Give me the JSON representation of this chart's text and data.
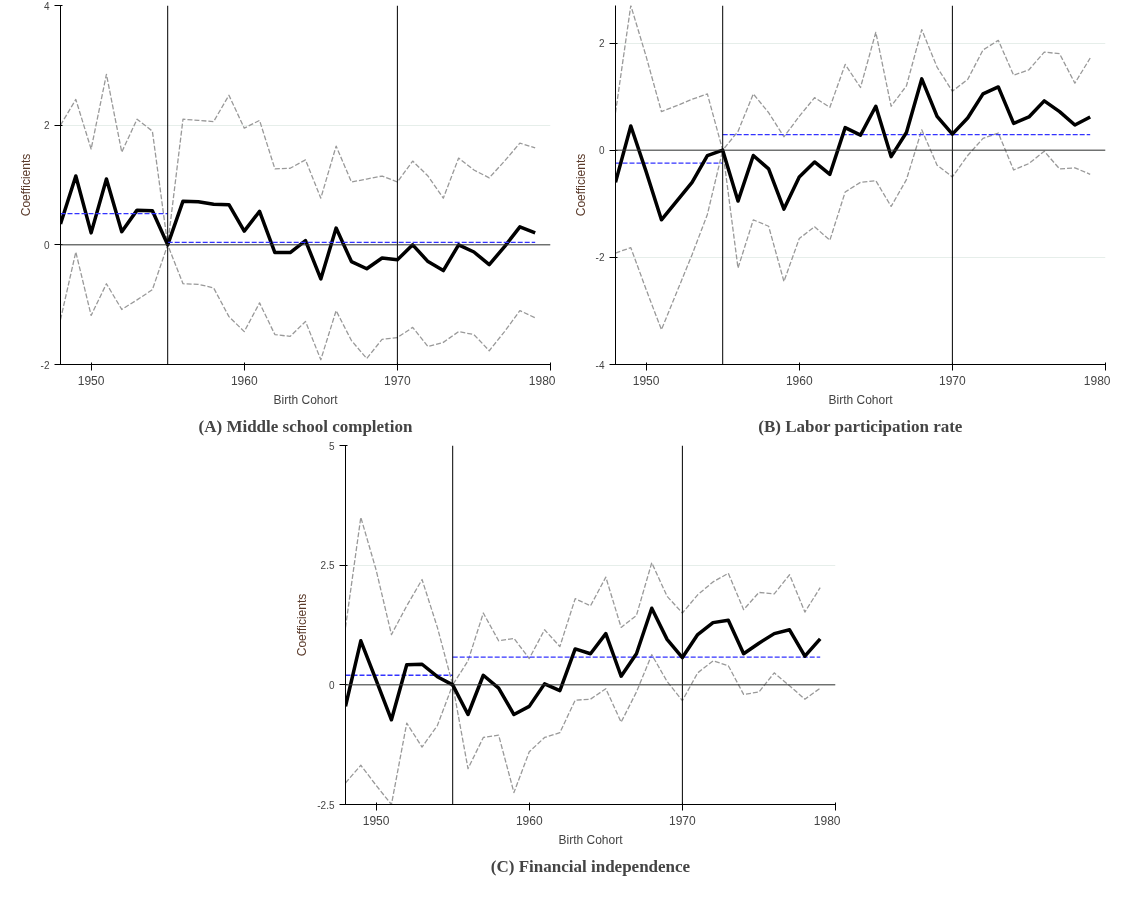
{
  "chart_data": [
    {
      "type": "line",
      "title": "(A) Middle school completion",
      "xlabel": "Birth Cohort",
      "ylabel": "Coefficients",
      "xlim": [
        1948,
        1980
      ],
      "ylim": [
        -2,
        4
      ],
      "xticks": [
        1950,
        1960,
        1970,
        1980
      ],
      "yticks": [
        -2,
        0,
        2,
        4
      ],
      "grid": "y",
      "x": [
        1948,
        1949,
        1950,
        1951,
        1952,
        1953,
        1954,
        1955,
        1956,
        1957,
        1958,
        1959,
        1960,
        1961,
        1962,
        1963,
        1964,
        1965,
        1966,
        1967,
        1968,
        1969,
        1970,
        1971,
        1972,
        1973,
        1974,
        1975,
        1976,
        1977,
        1978,
        1979
      ],
      "ref_lines": [
        {
          "axis": "x",
          "value": 1955,
          "color": "#000000"
        },
        {
          "axis": "x",
          "value": 1970,
          "color": "#000000"
        },
        {
          "axis": "y",
          "value": 0,
          "color": "#333333"
        }
      ],
      "series": [
        {
          "color": "#999999",
          "line_style": "dashed",
          "values": [
            2.0,
            2.43,
            1.6,
            2.85,
            1.55,
            2.1,
            1.9,
            0,
            2.1,
            2.08,
            2.06,
            2.5,
            1.95,
            2.08,
            1.27,
            1.28,
            1.42,
            0.78,
            1.65,
            1.05,
            1.1,
            1.15,
            1.05,
            1.4,
            1.15,
            0.78,
            1.45,
            1.25,
            1.12,
            1.4,
            1.7,
            1.62
          ]
        },
        {
          "color": "#999999",
          "line_style": "dashed",
          "values": [
            -1.25,
            -0.12,
            -1.18,
            -0.65,
            -1.08,
            -0.92,
            -0.75,
            0,
            -0.65,
            -0.66,
            -0.72,
            -1.2,
            -1.45,
            -0.97,
            -1.5,
            -1.53,
            -1.28,
            -1.92,
            -1.1,
            -1.6,
            -1.9,
            -1.58,
            -1.55,
            -1.38,
            -1.7,
            -1.63,
            -1.45,
            -1.5,
            -1.77,
            -1.45,
            -1.1,
            -1.22
          ]
        },
        {
          "color": "#000000",
          "line_style": "solid",
          "values": [
            0.35,
            1.15,
            0.2,
            1.1,
            0.22,
            0.58,
            0.57,
            0,
            0.73,
            0.72,
            0.68,
            0.67,
            0.23,
            0.56,
            -0.13,
            -0.13,
            0.07,
            -0.57,
            0.28,
            -0.28,
            -0.4,
            -0.22,
            -0.25,
            0.0,
            -0.28,
            -0.43,
            0.0,
            -0.12,
            -0.33,
            -0.03,
            0.3,
            0.2
          ]
        },
        {
          "color": "#3333ff",
          "line_style": "dashed",
          "x": [
            1948,
            1955
          ],
          "values": [
            0.52,
            0.52
          ]
        },
        {
          "color": "#3333ff",
          "line_style": "dashed",
          "x": [
            1955,
            1979
          ],
          "values": [
            0.04,
            0.04
          ]
        }
      ]
    },
    {
      "type": "line",
      "title": "(B) Labor participation rate",
      "xlabel": "Birth Cohort",
      "ylabel": "Coefficients",
      "xlim": [
        1948,
        1980
      ],
      "ylim": [
        -4,
        2.7
      ],
      "xticks": [
        1950,
        1960,
        1970,
        1980
      ],
      "yticks": [
        -4,
        -2,
        0,
        2
      ],
      "grid": "y",
      "x": [
        1948,
        1949,
        1950,
        1951,
        1952,
        1953,
        1954,
        1955,
        1956,
        1957,
        1958,
        1959,
        1960,
        1961,
        1962,
        1963,
        1964,
        1965,
        1966,
        1967,
        1968,
        1969,
        1970,
        1971,
        1972,
        1973,
        1974,
        1975,
        1976,
        1977,
        1978,
        1979
      ],
      "ref_lines": [
        {
          "axis": "x",
          "value": 1955,
          "color": "#000000"
        },
        {
          "axis": "x",
          "value": 1970,
          "color": "#000000"
        },
        {
          "axis": "y",
          "value": 0,
          "color": "#333333"
        }
      ],
      "series": [
        {
          "color": "#999999",
          "line_style": "dashed",
          "values": [
            0.7,
            2.7,
            1.75,
            0.72,
            0.83,
            0.95,
            1.05,
            0,
            0.35,
            1.05,
            0.7,
            0.25,
            0.63,
            0.98,
            0.8,
            1.6,
            1.17,
            2.2,
            0.82,
            1.2,
            2.25,
            1.55,
            1.1,
            1.32,
            1.87,
            2.05,
            1.4,
            1.5,
            1.83,
            1.8,
            1.25,
            1.72
          ]
        },
        {
          "color": "#999999",
          "line_style": "dashed",
          "values": [
            -1.92,
            -1.82,
            -2.6,
            -3.35,
            -2.65,
            -1.95,
            -1.2,
            0,
            -2.2,
            -1.3,
            -1.42,
            -2.45,
            -1.65,
            -1.43,
            -1.68,
            -0.78,
            -0.6,
            -0.57,
            -1.05,
            -0.55,
            0.38,
            -0.28,
            -0.5,
            -0.1,
            0.22,
            0.32,
            -0.37,
            -0.25,
            -0.02,
            -0.35,
            -0.33,
            -0.45
          ]
        },
        {
          "color": "#3333ff",
          "line_style": "dashed",
          "x": [
            1948,
            1955
          ],
          "values": [
            -0.24,
            -0.24
          ]
        },
        {
          "color": "#3333ff",
          "line_style": "dashed",
          "x": [
            1955,
            1979
          ],
          "values": [
            0.29,
            0.29
          ]
        },
        {
          "color": "#000000",
          "line_style": "solid",
          "values": [
            -0.6,
            0.45,
            -0.4,
            -1.3,
            -0.95,
            -0.6,
            -0.1,
            0,
            -0.95,
            -0.1,
            -0.35,
            -1.1,
            -0.5,
            -0.22,
            -0.45,
            0.42,
            0.28,
            0.82,
            -0.12,
            0.33,
            1.33,
            0.63,
            0.3,
            0.6,
            1.05,
            1.18,
            0.5,
            0.62,
            0.92,
            0.72,
            0.47,
            0.62
          ]
        }
      ]
    },
    {
      "type": "line",
      "title": "(C) Financial independence",
      "xlabel": "Birth Cohort",
      "ylabel": "Coefficients",
      "xlim": [
        1948,
        1980
      ],
      "ylim": [
        -2.5,
        5
      ],
      "xticks": [
        1950,
        1960,
        1970,
        1980
      ],
      "yticks": [
        -2.5,
        0,
        2.5,
        5
      ],
      "grid": "y",
      "x": [
        1948,
        1949,
        1950,
        1951,
        1952,
        1953,
        1954,
        1955,
        1956,
        1957,
        1958,
        1959,
        1960,
        1961,
        1962,
        1963,
        1964,
        1965,
        1966,
        1967,
        1968,
        1969,
        1970,
        1971,
        1972,
        1973,
        1974,
        1975,
        1976,
        1977,
        1978,
        1979
      ],
      "ref_lines": [
        {
          "axis": "x",
          "value": 1955,
          "color": "#000000"
        },
        {
          "axis": "x",
          "value": 1970,
          "color": "#000000"
        },
        {
          "axis": "y",
          "value": 0,
          "color": "#333333"
        }
      ],
      "series": [
        {
          "color": "#999999",
          "line_style": "dashed",
          "values": [
            1.2,
            3.5,
            2.4,
            1.05,
            1.65,
            2.2,
            1.2,
            0,
            0.5,
            1.5,
            0.92,
            0.97,
            0.55,
            1.15,
            0.8,
            1.8,
            1.65,
            2.25,
            1.2,
            1.45,
            2.55,
            1.85,
            1.5,
            1.88,
            2.15,
            2.33,
            1.57,
            1.93,
            1.9,
            2.3,
            1.52,
            2.03
          ]
        },
        {
          "color": "#999999",
          "line_style": "dashed",
          "values": [
            -2.05,
            -1.68,
            -2.1,
            -2.5,
            -0.8,
            -1.3,
            -0.85,
            0,
            -1.75,
            -1.1,
            -1.05,
            -2.25,
            -1.4,
            -1.1,
            -1.0,
            -0.32,
            -0.3,
            -0.08,
            -0.78,
            -0.15,
            0.63,
            0.07,
            -0.33,
            0.25,
            0.5,
            0.4,
            -0.2,
            -0.15,
            0.25,
            -0.02,
            -0.3,
            -0.07
          ]
        },
        {
          "color": "#3333ff",
          "line_style": "dashed",
          "x": [
            1948,
            1955
          ],
          "values": [
            0.2,
            0.2
          ]
        },
        {
          "color": "#3333ff",
          "line_style": "dashed",
          "x": [
            1955,
            1979
          ],
          "values": [
            0.58,
            0.58
          ]
        },
        {
          "color": "#000000",
          "line_style": "solid",
          "values": [
            -0.45,
            0.92,
            0.1,
            -0.73,
            0.42,
            0.43,
            0.17,
            0,
            -0.62,
            0.2,
            -0.07,
            -0.62,
            -0.45,
            0.02,
            -0.12,
            0.75,
            0.65,
            1.07,
            0.18,
            0.65,
            1.6,
            0.95,
            0.57,
            1.05,
            1.3,
            1.35,
            0.65,
            0.87,
            1.07,
            1.15,
            0.6,
            0.96
          ]
        }
      ]
    }
  ]
}
